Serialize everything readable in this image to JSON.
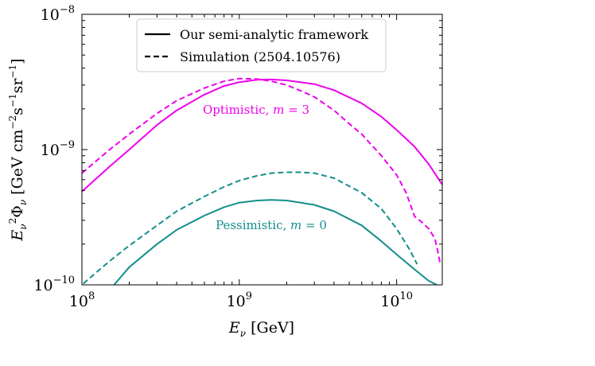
{
  "chart_data": {
    "type": "line",
    "xlabel": "E_ν [GeV]",
    "ylabel": "E_ν²Φ_ν [GeV cm⁻² s⁻¹ sr⁻¹]",
    "x_scale": "log",
    "y_scale": "log",
    "xlim": [
      100000000.0,
      19500000000.0
    ],
    "ylim": [
      1e-10,
      1e-08
    ],
    "x_ticks": [
      {
        "value": 100000000.0,
        "base": "10",
        "exp": "8"
      },
      {
        "value": 1000000000.0,
        "base": "10",
        "exp": "9"
      },
      {
        "value": 10000000000.0,
        "base": "10",
        "exp": "10"
      }
    ],
    "y_ticks": [
      {
        "value": 1e-10,
        "base": "10",
        "exp": "−10"
      },
      {
        "value": 1e-09,
        "base": "10",
        "exp": "−9"
      },
      {
        "value": 1e-08,
        "base": "10",
        "exp": "−8"
      }
    ],
    "legend": {
      "position": "top-center",
      "entries": [
        {
          "label": "Our semi-analytic framework",
          "style": "solid"
        },
        {
          "label": "Simulation (2504.10576)",
          "style": "dashed"
        }
      ]
    },
    "annotations": [
      {
        "text": "Optimistic, m = 3",
        "color": "#ee00ee"
      },
      {
        "text": "Pessimistic, m = 0",
        "color": "#138f8a"
      }
    ],
    "series": [
      {
        "group": "optimistic",
        "style": "solid",
        "color": "#ee00ee",
        "x": [
          100000000.0,
          150000000.0,
          200000000.0,
          300000000.0,
          400000000.0,
          600000000.0,
          800000000.0,
          1000000000.0,
          1300000000.0,
          1600000000.0,
          2000000000.0,
          3000000000.0,
          4000000000.0,
          6000000000.0,
          8000000000.0,
          10000000000.0,
          13000000000.0,
          16000000000.0,
          19500000000.0
        ],
        "y": [
          4.9e-10,
          7.5e-10,
          1e-09,
          1.52e-09,
          1.95e-09,
          2.55e-09,
          2.95e-09,
          3.15e-09,
          3.28e-09,
          3.3e-09,
          3.25e-09,
          3.05e-09,
          2.75e-09,
          2.2e-09,
          1.75e-09,
          1.4e-09,
          1.05e-09,
          7.8e-10,
          5.5e-10
        ]
      },
      {
        "group": "optimistic",
        "style": "dashed",
        "color": "#ee00ee",
        "x": [
          100000000.0,
          150000000.0,
          200000000.0,
          300000000.0,
          400000000.0,
          600000000.0,
          800000000.0,
          1000000000.0,
          1300000000.0,
          1600000000.0,
          2000000000.0,
          2500000000.0,
          3000000000.0,
          4000000000.0,
          5000000000.0,
          6000000000.0,
          8000000000.0,
          10000000000.0,
          11500000000.0,
          13000000000.0,
          14500000000.0,
          16000000000.0,
          17500000000.0,
          18200000000.0,
          19000000000.0
        ],
        "y": [
          6.7e-10,
          1e-09,
          1.3e-09,
          1.85e-09,
          2.3e-09,
          2.85e-09,
          3.2e-09,
          3.35e-09,
          3.32e-09,
          3.2e-09,
          3e-09,
          2.7e-09,
          2.45e-09,
          1.95e-09,
          1.55e-09,
          1.3e-09,
          9e-10,
          6.5e-10,
          4.8e-10,
          3.2e-10,
          2.9e-10,
          2.6e-10,
          2.2e-10,
          1.8e-10,
          1.4e-10
        ]
      },
      {
        "group": "pessimistic",
        "style": "solid",
        "color": "#138f8a",
        "x": [
          160000000.0,
          200000000.0,
          300000000.0,
          400000000.0,
          600000000.0,
          800000000.0,
          1000000000.0,
          1300000000.0,
          1600000000.0,
          2000000000.0,
          3000000000.0,
          4000000000.0,
          6000000000.0,
          8000000000.0,
          10000000000.0,
          13000000000.0,
          16000000000.0,
          18000000000.0
        ],
        "y": [
          1e-10,
          1.35e-10,
          2e-10,
          2.55e-10,
          3.25e-10,
          3.75e-10,
          4.05e-10,
          4.2e-10,
          4.25e-10,
          4.2e-10,
          3.9e-10,
          3.5e-10,
          2.75e-10,
          2.1e-10,
          1.68e-10,
          1.3e-10,
          1.07e-10,
          1e-10
        ]
      },
      {
        "group": "pessimistic",
        "style": "dashed",
        "color": "#138f8a",
        "x": [
          102000000.0,
          150000000.0,
          200000000.0,
          300000000.0,
          400000000.0,
          600000000.0,
          800000000.0,
          1000000000.0,
          1300000000.0,
          1600000000.0,
          2000000000.0,
          2500000000.0,
          3000000000.0,
          4000000000.0,
          6000000000.0,
          8000000000.0,
          10000000000.0,
          12000000000.0,
          13500000000.0
        ],
        "y": [
          1.02e-10,
          1.5e-10,
          1.95e-10,
          2.75e-10,
          3.5e-10,
          4.5e-10,
          5.3e-10,
          5.9e-10,
          6.4e-10,
          6.7e-10,
          6.8e-10,
          6.8e-10,
          6.7e-10,
          6.15e-10,
          4.8e-10,
          3.65e-10,
          2.6e-10,
          1.85e-10,
          1.42e-10
        ]
      }
    ]
  }
}
